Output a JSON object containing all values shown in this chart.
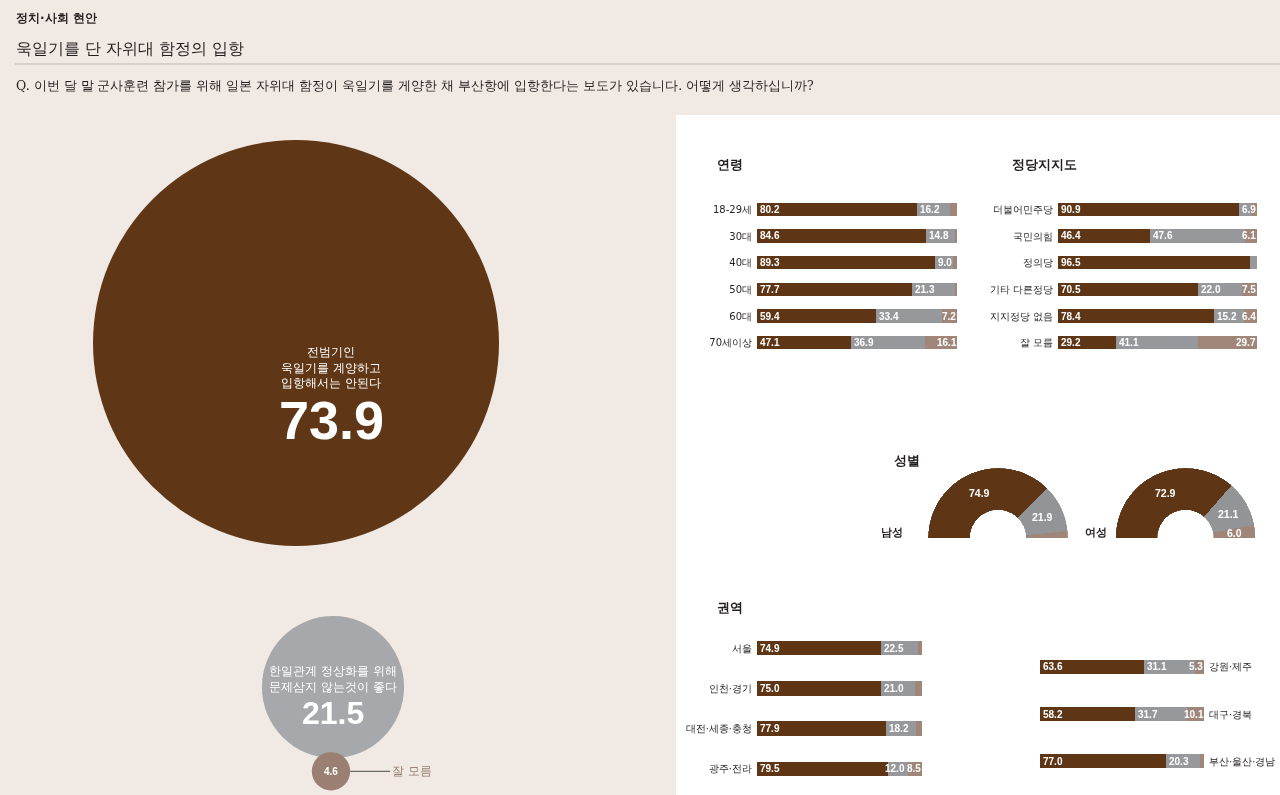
{
  "chart_data": [
    {
      "type": "other",
      "title": "욱일기를 단 자위대 함정의 입항",
      "subtitle": "Q. 이번 달 말 군사훈련 참가를 위해 일본 자위대 함정이 욱일기를 게양한 채 부산항에 입항한다는 보도가 있습니다. 어떻게 생각하십니까?",
      "annotations": [
        "정치·사회 현안"
      ],
      "categories": [
        "전범기인\n욱일기를 계양하고\n입항해서는 안된다",
        "한일관계 정상화를 위해\n문제삼지 않는것이 좋다",
        "잘 모름"
      ],
      "values": [
        73.9,
        21.5,
        4.6
      ],
      "colors": [
        "#5f3716",
        "#a7a8ab",
        "#9a7f72"
      ],
      "data_labels": true
    },
    {
      "type": "bar",
      "title": "연령",
      "orientation": "horizontal",
      "stacked": true,
      "tick_labels": "y",
      "categories": [
        "18-29세",
        "30대",
        "40대",
        "50대",
        "60대",
        "70세이상"
      ],
      "series": [
        {
          "color": "#5e3515",
          "values": [
            80.2,
            84.6,
            89.3,
            77.7,
            59.4,
            47.1
          ],
          "value_labels": [
            "80.2",
            "84.6",
            "89.3",
            "77.7",
            "59.4",
            "47.1"
          ]
        },
        {
          "color": "#97989b",
          "values": [
            16.2,
            14.8,
            9.0,
            21.3,
            33.4,
            36.9
          ],
          "value_labels": [
            "16.2",
            "14.8",
            "9.0",
            "21.3",
            "33.4",
            "36.9"
          ]
        },
        {
          "color": "#a08679",
          "values": [
            3.6,
            0.6,
            1.7,
            1.0,
            7.2,
            16.1
          ],
          "value_labels": [
            null,
            null,
            null,
            null,
            "7.2",
            "16.1"
          ]
        }
      ]
    },
    {
      "type": "bar",
      "title": "정당지지도",
      "orientation": "horizontal",
      "stacked": true,
      "tick_labels": "y",
      "categories": [
        "더불어민주당",
        "국민의힘",
        "정의당",
        "기타 다른정당",
        "지지정당 없음",
        "잘 모름"
      ],
      "series": [
        {
          "color": "#5e3515",
          "values": [
            90.9,
            46.4,
            96.5,
            70.5,
            78.4,
            29.2
          ],
          "value_labels": [
            "90.9",
            "46.4",
            "96.5",
            "70.5",
            "78.4",
            "29.2"
          ]
        },
        {
          "color": "#97989b",
          "values": [
            6.9,
            47.6,
            3.5,
            22.0,
            15.2,
            41.1
          ],
          "value_labels": [
            "6.9",
            "47.6",
            null,
            "22.0",
            "15.2",
            "41.1"
          ]
        },
        {
          "color": "#a08679",
          "values": [
            2.2,
            6.1,
            null,
            7.5,
            6.4,
            29.7
          ],
          "value_labels": [
            null,
            "6.1",
            null,
            "7.5",
            "6.4",
            "29.7"
          ]
        }
      ]
    },
    {
      "type": "donut",
      "title": "성별",
      "annotations": [
        "남성"
      ],
      "categories": [
        null,
        null,
        null
      ],
      "values": [
        74.9,
        21.9,
        3.2
      ],
      "colors": [
        "#5e3515",
        "#939497",
        "#a08679"
      ],
      "value_labels": [
        "74.9",
        "21.9",
        null
      ]
    },
    {
      "type": "donut",
      "annotations": [
        "여성"
      ],
      "categories": [
        null,
        null,
        null
      ],
      "values": [
        72.9,
        21.1,
        6.0
      ],
      "colors": [
        "#5e3515",
        "#939497",
        "#a08679"
      ],
      "value_labels": [
        "72.9",
        "21.1",
        "6.0"
      ]
    },
    {
      "type": "bar",
      "title": "권역",
      "orientation": "horizontal",
      "stacked": true,
      "tick_labels": "y",
      "categories": [
        "서울",
        "인천·경기",
        "대전·세종·충청",
        "광주·전라"
      ],
      "series": [
        {
          "color": "#5e3515",
          "values": [
            74.9,
            75.0,
            77.9,
            79.5
          ],
          "value_labels": [
            "74.9",
            "75.0",
            "77.9",
            "79.5"
          ]
        },
        {
          "color": "#97989b",
          "values": [
            22.5,
            21.0,
            18.2,
            12.0
          ],
          "value_labels": [
            "22.5",
            "21.0",
            "18.2",
            "12.0"
          ]
        },
        {
          "color": "#a08679",
          "values": [
            2.6,
            4.0,
            3.9,
            8.5
          ],
          "value_labels": [
            null,
            null,
            null,
            "8.5"
          ]
        }
      ]
    },
    {
      "type": "bar",
      "orientation": "horizontal",
      "stacked": true,
      "tick_labels": "y",
      "categories": [
        "강원·제주",
        "대구·경북",
        "부산·울산·경남"
      ],
      "series": [
        {
          "color": "#5e3515",
          "values": [
            63.6,
            58.2,
            77.0
          ],
          "value_labels": [
            "63.6",
            "58.2",
            "77.0"
          ]
        },
        {
          "color": "#97989b",
          "values": [
            31.1,
            31.7,
            20.3
          ],
          "value_labels": [
            "31.1",
            "31.7",
            "20.3"
          ]
        },
        {
          "color": "#a08679",
          "values": [
            5.3,
            10.1,
            2.7
          ],
          "value_labels": [
            "5.3",
            "10.1",
            null
          ]
        }
      ]
    }
  ]
}
